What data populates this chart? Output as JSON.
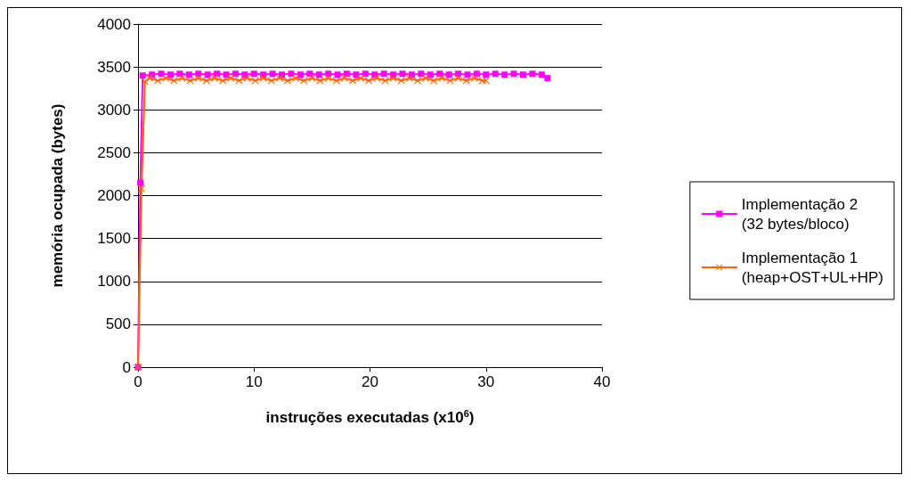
{
  "chart_data": {
    "type": "line",
    "xlabel": "instruções executadas (x10$^{6}$)",
    "ylabel": "memória ocupada (bytes)",
    "xlim": [
      0,
      40
    ],
    "xticks": [
      0,
      10,
      20,
      30,
      40
    ],
    "ylim": [
      0,
      4000
    ],
    "yticks": [
      0,
      500,
      1000,
      1500,
      2000,
      2500,
      3000,
      3500,
      4000
    ],
    "grid": "y",
    "legend": "right",
    "series": [
      {
        "name": "Implementação 2\n(32 bytes/bloco)",
        "color": "#ff00ff",
        "marker": "square",
        "x": [
          0,
          0.2,
          0.4,
          1.2,
          2,
          2.8,
          3.6,
          4.4,
          5.2,
          6,
          6.8,
          7.6,
          8.4,
          9.2,
          10,
          10.8,
          11.6,
          12.4,
          13.2,
          14,
          14.8,
          15.6,
          16.4,
          17.2,
          18,
          18.8,
          19.6,
          20.4,
          21.2,
          22,
          22.8,
          23.6,
          24.4,
          25.2,
          26,
          26.8,
          27.6,
          28.4,
          29.2,
          30,
          30.8,
          31.6,
          32.4,
          33.2,
          34,
          34.8,
          35.3
        ],
        "values": [
          0,
          2150,
          3400,
          3410,
          3420,
          3410,
          3420,
          3410,
          3420,
          3410,
          3420,
          3410,
          3420,
          3410,
          3420,
          3410,
          3420,
          3410,
          3420,
          3410,
          3420,
          3410,
          3420,
          3410,
          3420,
          3410,
          3420,
          3410,
          3420,
          3410,
          3420,
          3410,
          3420,
          3410,
          3420,
          3410,
          3420,
          3410,
          3420,
          3410,
          3420,
          3410,
          3420,
          3410,
          3420,
          3410,
          3370
        ]
      },
      {
        "name": "Implementação 1\n(heap+OST+UL+HP)",
        "color": "#ff6600",
        "marker": "cross",
        "x": [
          0,
          0.3,
          0.6,
          1,
          1.7,
          2.4,
          3.1,
          3.8,
          4.5,
          5.2,
          5.9,
          6.6,
          7.3,
          8,
          8.7,
          9.4,
          10.1,
          10.8,
          11.5,
          12.2,
          12.9,
          13.6,
          14.3,
          15,
          15.7,
          16.4,
          17.1,
          17.8,
          18.5,
          19.2,
          19.9,
          20.6,
          21.3,
          22,
          22.7,
          23.4,
          24.1,
          24.8,
          25.5,
          26.2,
          26.9,
          27.6,
          28.3,
          29,
          29.7,
          30
        ],
        "values": [
          0,
          2080,
          3330,
          3370,
          3340,
          3370,
          3340,
          3370,
          3340,
          3370,
          3340,
          3370,
          3340,
          3370,
          3340,
          3370,
          3340,
          3370,
          3340,
          3370,
          3340,
          3370,
          3340,
          3370,
          3340,
          3370,
          3340,
          3370,
          3340,
          3370,
          3340,
          3370,
          3340,
          3370,
          3340,
          3370,
          3340,
          3370,
          3340,
          3370,
          3340,
          3370,
          3340,
          3370,
          3340,
          3340
        ]
      }
    ]
  }
}
